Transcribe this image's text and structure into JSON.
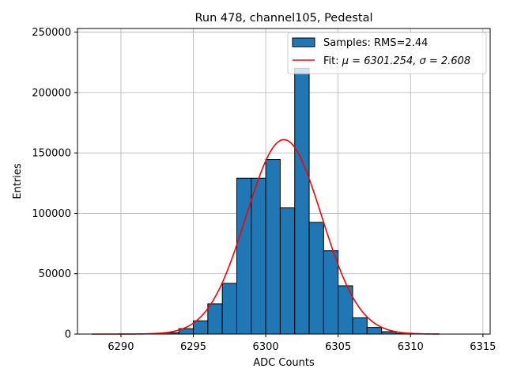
{
  "chart_data": {
    "type": "bar",
    "title": "Run 478, channel105, Pedestal",
    "xlabel": "ADC Counts",
    "ylabel": "Entries",
    "xlim": [
      6287,
      6315.5
    ],
    "ylim": [
      0,
      253000
    ],
    "xticks": [
      6290,
      6295,
      6300,
      6305,
      6310,
      6315
    ],
    "yticks": [
      0,
      50000,
      100000,
      150000,
      200000,
      250000
    ],
    "grid": true,
    "legend_position": "top-right",
    "bar_color": "#1f77b4",
    "fit_color": "#ff0000",
    "histogram": {
      "name": "Samples: RMS=2.44",
      "bin_edges": [
        6292.0,
        6293.0,
        6294.0,
        6295.0,
        6296.0,
        6297.0,
        6298.0,
        6299.0,
        6300.0,
        6301.0,
        6302.0,
        6303.0,
        6304.0,
        6305.0,
        6306.0,
        6307.0,
        6308.0,
        6309.0,
        6310.0
      ],
      "counts": [
        300,
        1200,
        4500,
        11000,
        25000,
        42000,
        129000,
        129000,
        144500,
        104500,
        220000,
        92500,
        69000,
        40000,
        13500,
        5500,
        2000,
        500
      ]
    },
    "fit": {
      "name_prefix": "Fit: ",
      "name_math": "μ = 6301.254, σ = 2.608",
      "mu": 6301.254,
      "sigma": 2.608,
      "amplitude": 161000,
      "x_range": [
        6288,
        6312
      ]
    }
  }
}
